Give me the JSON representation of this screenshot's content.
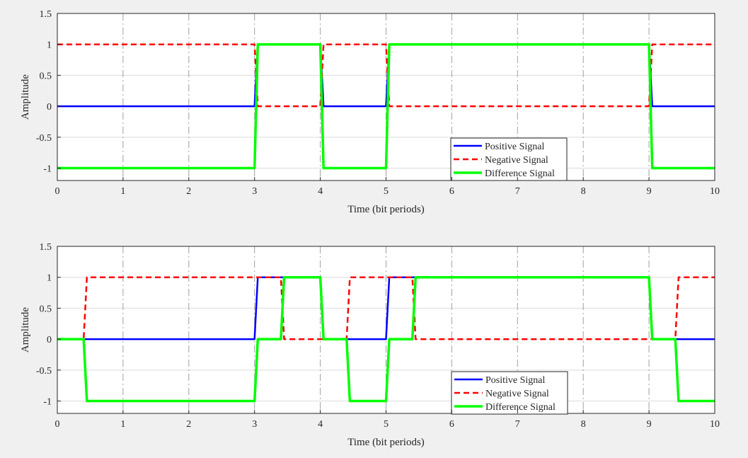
{
  "figure": {
    "background": "#f0f0f0"
  },
  "chart_data": [
    {
      "type": "line",
      "xlabel": "Time (bit periods)",
      "ylabel": "Amplitude",
      "xlim": [
        0,
        10
      ],
      "ylim": [
        -1.2,
        1.5
      ],
      "xticks": [
        0,
        1,
        2,
        3,
        4,
        5,
        6,
        7,
        8,
        9,
        10
      ],
      "yticks": [
        -1,
        -0.5,
        0,
        0.5,
        1,
        1.5
      ],
      "grid": true,
      "legend_position": "bottom-right",
      "series": [
        {
          "name": "Positive Signal",
          "color": "#0000ff",
          "dash": "solid",
          "width": 2.5,
          "x": [
            0,
            3,
            3.05,
            4,
            4.05,
            5,
            5.05,
            9,
            9.05,
            10
          ],
          "y": [
            0,
            0,
            1,
            1,
            0,
            0,
            1,
            1,
            0,
            0
          ]
        },
        {
          "name": "Negative Signal",
          "color": "#ff0000",
          "dash": "dashed",
          "width": 2.5,
          "x": [
            0,
            3,
            3.05,
            4,
            4.05,
            5,
            5.05,
            9,
            9.05,
            10
          ],
          "y": [
            1,
            1,
            0,
            0,
            1,
            1,
            0,
            0,
            1,
            1
          ]
        },
        {
          "name": "Difference Signal",
          "color": "#00ff00",
          "dash": "solid",
          "width": 3.5,
          "x": [
            0,
            3,
            3.05,
            4,
            4.05,
            5,
            5.05,
            9,
            9.05,
            10
          ],
          "y": [
            -1,
            -1,
            1,
            1,
            -1,
            -1,
            1,
            1,
            -1,
            -1
          ]
        }
      ]
    },
    {
      "type": "line",
      "xlabel": "Time (bit periods)",
      "ylabel": "Amplitude",
      "xlim": [
        0,
        10
      ],
      "ylim": [
        -1.2,
        1.5
      ],
      "xticks": [
        0,
        1,
        2,
        3,
        4,
        5,
        6,
        7,
        8,
        9,
        10
      ],
      "yticks": [
        -1,
        -0.5,
        0,
        0.5,
        1,
        1.5
      ],
      "grid": true,
      "legend_position": "bottom-right",
      "series": [
        {
          "name": "Positive Signal",
          "color": "#0000ff",
          "dash": "solid",
          "width": 2.5,
          "x": [
            0,
            3,
            3.05,
            4,
            4.05,
            5,
            5.05,
            9,
            9.05,
            10
          ],
          "y": [
            0,
            0,
            1,
            1,
            0,
            0,
            1,
            1,
            0,
            0
          ]
        },
        {
          "name": "Negative Signal",
          "color": "#ff0000",
          "dash": "dashed",
          "width": 2.5,
          "x": [
            0,
            0.4,
            0.45,
            3.4,
            3.45,
            4.4,
            4.45,
            5.4,
            5.45,
            9.4,
            9.45,
            10
          ],
          "y": [
            0,
            0,
            1,
            1,
            0,
            0,
            1,
            1,
            0,
            0,
            1,
            1
          ]
        },
        {
          "name": "Difference Signal",
          "color": "#00ff00",
          "dash": "solid",
          "width": 3.5,
          "x": [
            0,
            0.4,
            0.45,
            3,
            3.05,
            3.4,
            3.45,
            4,
            4.05,
            4.4,
            4.45,
            5,
            5.05,
            5.4,
            5.45,
            9,
            9.05,
            9.4,
            9.45,
            10
          ],
          "y": [
            0,
            0,
            -1,
            -1,
            0,
            0,
            1,
            1,
            0,
            0,
            -1,
            -1,
            0,
            0,
            1,
            1,
            0,
            0,
            -1,
            -1
          ]
        }
      ]
    }
  ]
}
